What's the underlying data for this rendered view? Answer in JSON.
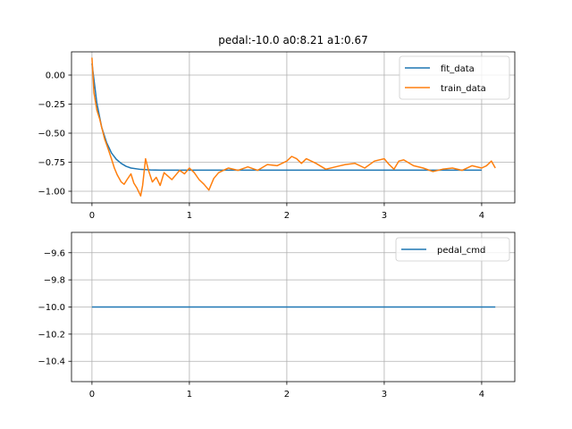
{
  "figure": {
    "background": "#ffffff"
  },
  "chart_data": [
    {
      "type": "line",
      "title": "pedal:-10.0 a0:8.21 a1:0.67",
      "xlabel": "",
      "ylabel": "",
      "xlim": [
        -0.21,
        4.34
      ],
      "ylim": [
        -1.1,
        0.2
      ],
      "xticks": [
        0,
        1,
        2,
        3,
        4
      ],
      "xtick_labels": [
        "0",
        "1",
        "2",
        "3",
        "4"
      ],
      "yticks": [
        0.0,
        -0.25,
        -0.5,
        -0.75,
        -1.0
      ],
      "ytick_labels": [
        "0.00",
        "−0.25",
        "−0.50",
        "−0.75",
        "−1.00"
      ],
      "grid": true,
      "legend": "upper right",
      "series": [
        {
          "name": "fit_data",
          "color": "#1f77b4",
          "x": [
            0.0,
            0.05,
            0.1,
            0.15,
            0.2,
            0.25,
            0.3,
            0.35,
            0.4,
            0.5,
            0.6,
            0.7,
            0.8,
            1.0,
            1.5,
            2.0,
            2.5,
            3.0,
            3.5,
            4.0
          ],
          "y": [
            0.1,
            -0.24,
            -0.45,
            -0.58,
            -0.67,
            -0.725,
            -0.76,
            -0.785,
            -0.8,
            -0.812,
            -0.816,
            -0.818,
            -0.818,
            -0.818,
            -0.818,
            -0.818,
            -0.818,
            -0.818,
            -0.818,
            -0.818
          ]
        },
        {
          "name": "train_data",
          "color": "#ff7f0e",
          "x": [
            0.0,
            0.02,
            0.05,
            0.08,
            0.1,
            0.13,
            0.16,
            0.2,
            0.23,
            0.26,
            0.3,
            0.33,
            0.36,
            0.4,
            0.43,
            0.46,
            0.5,
            0.52,
            0.55,
            0.58,
            0.62,
            0.66,
            0.7,
            0.74,
            0.78,
            0.82,
            0.86,
            0.9,
            0.95,
            1.0,
            1.05,
            1.1,
            1.15,
            1.2,
            1.25,
            1.3,
            1.35,
            1.4,
            1.5,
            1.6,
            1.7,
            1.8,
            1.9,
            2.0,
            2.05,
            2.1,
            2.15,
            2.2,
            2.3,
            2.4,
            2.5,
            2.6,
            2.7,
            2.8,
            2.9,
            3.0,
            3.05,
            3.1,
            3.15,
            3.2,
            3.3,
            3.4,
            3.5,
            3.6,
            3.7,
            3.8,
            3.9,
            4.0,
            4.05,
            4.1,
            4.14
          ],
          "y": [
            0.15,
            -0.15,
            -0.3,
            -0.38,
            -0.45,
            -0.55,
            -0.62,
            -0.72,
            -0.8,
            -0.86,
            -0.92,
            -0.94,
            -0.9,
            -0.85,
            -0.93,
            -0.97,
            -1.04,
            -0.95,
            -0.72,
            -0.82,
            -0.92,
            -0.88,
            -0.95,
            -0.84,
            -0.87,
            -0.9,
            -0.86,
            -0.82,
            -0.85,
            -0.8,
            -0.84,
            -0.9,
            -0.94,
            -0.99,
            -0.89,
            -0.84,
            -0.82,
            -0.8,
            -0.82,
            -0.79,
            -0.82,
            -0.77,
            -0.78,
            -0.74,
            -0.7,
            -0.72,
            -0.76,
            -0.72,
            -0.76,
            -0.81,
            -0.79,
            -0.77,
            -0.76,
            -0.8,
            -0.74,
            -0.72,
            -0.77,
            -0.81,
            -0.74,
            -0.73,
            -0.78,
            -0.8,
            -0.83,
            -0.81,
            -0.8,
            -0.82,
            -0.78,
            -0.8,
            -0.78,
            -0.74,
            -0.8
          ]
        }
      ]
    },
    {
      "type": "line",
      "title": "",
      "xlabel": "",
      "ylabel": "",
      "xlim": [
        -0.21,
        4.34
      ],
      "ylim": [
        -10.55,
        -9.45
      ],
      "xticks": [
        0,
        1,
        2,
        3,
        4
      ],
      "xtick_labels": [
        "0",
        "1",
        "2",
        "3",
        "4"
      ],
      "yticks": [
        -9.6,
        -9.8,
        -10.0,
        -10.2,
        -10.4
      ],
      "ytick_labels": [
        "−9.6",
        "−9.8",
        "−10.0",
        "−10.2",
        "−10.4"
      ],
      "grid": true,
      "legend": "upper right",
      "series": [
        {
          "name": "pedal_cmd",
          "color": "#1f77b4",
          "x": [
            0.0,
            4.14
          ],
          "y": [
            -10.0,
            -10.0
          ]
        }
      ]
    }
  ]
}
